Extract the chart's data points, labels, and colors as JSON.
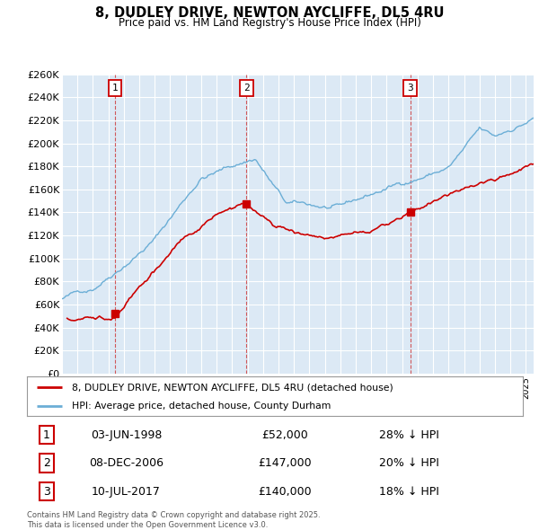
{
  "title": "8, DUDLEY DRIVE, NEWTON AYCLIFFE, DL5 4RU",
  "subtitle": "Price paid vs. HM Land Registry's House Price Index (HPI)",
  "background_color": "#dce9f5",
  "grid_color": "#ffffff",
  "hpi_color": "#6baed6",
  "price_color": "#cc0000",
  "ylim": [
    0,
    260000
  ],
  "yticks": [
    0,
    20000,
    40000,
    60000,
    80000,
    100000,
    120000,
    140000,
    160000,
    180000,
    200000,
    220000,
    240000,
    260000
  ],
  "trans_years": [
    1998.42,
    2006.93,
    2017.52
  ],
  "trans_prices": [
    52000,
    147000,
    140000
  ],
  "trans_labels": [
    "1",
    "2",
    "3"
  ],
  "legend_entries": [
    "8, DUDLEY DRIVE, NEWTON AYCLIFFE, DL5 4RU (detached house)",
    "HPI: Average price, detached house, County Durham"
  ],
  "table_rows": [
    {
      "num": "1",
      "date": "03-JUN-1998",
      "price": "£52,000",
      "hpi": "28% ↓ HPI"
    },
    {
      "num": "2",
      "date": "08-DEC-2006",
      "price": "£147,000",
      "hpi": "20% ↓ HPI"
    },
    {
      "num": "3",
      "date": "10-JUL-2017",
      "price": "£140,000",
      "hpi": "18% ↓ HPI"
    }
  ],
  "footnote": "Contains HM Land Registry data © Crown copyright and database right 2025.\nThis data is licensed under the Open Government Licence v3.0.",
  "xmin": 1995,
  "xmax": 2025.5
}
